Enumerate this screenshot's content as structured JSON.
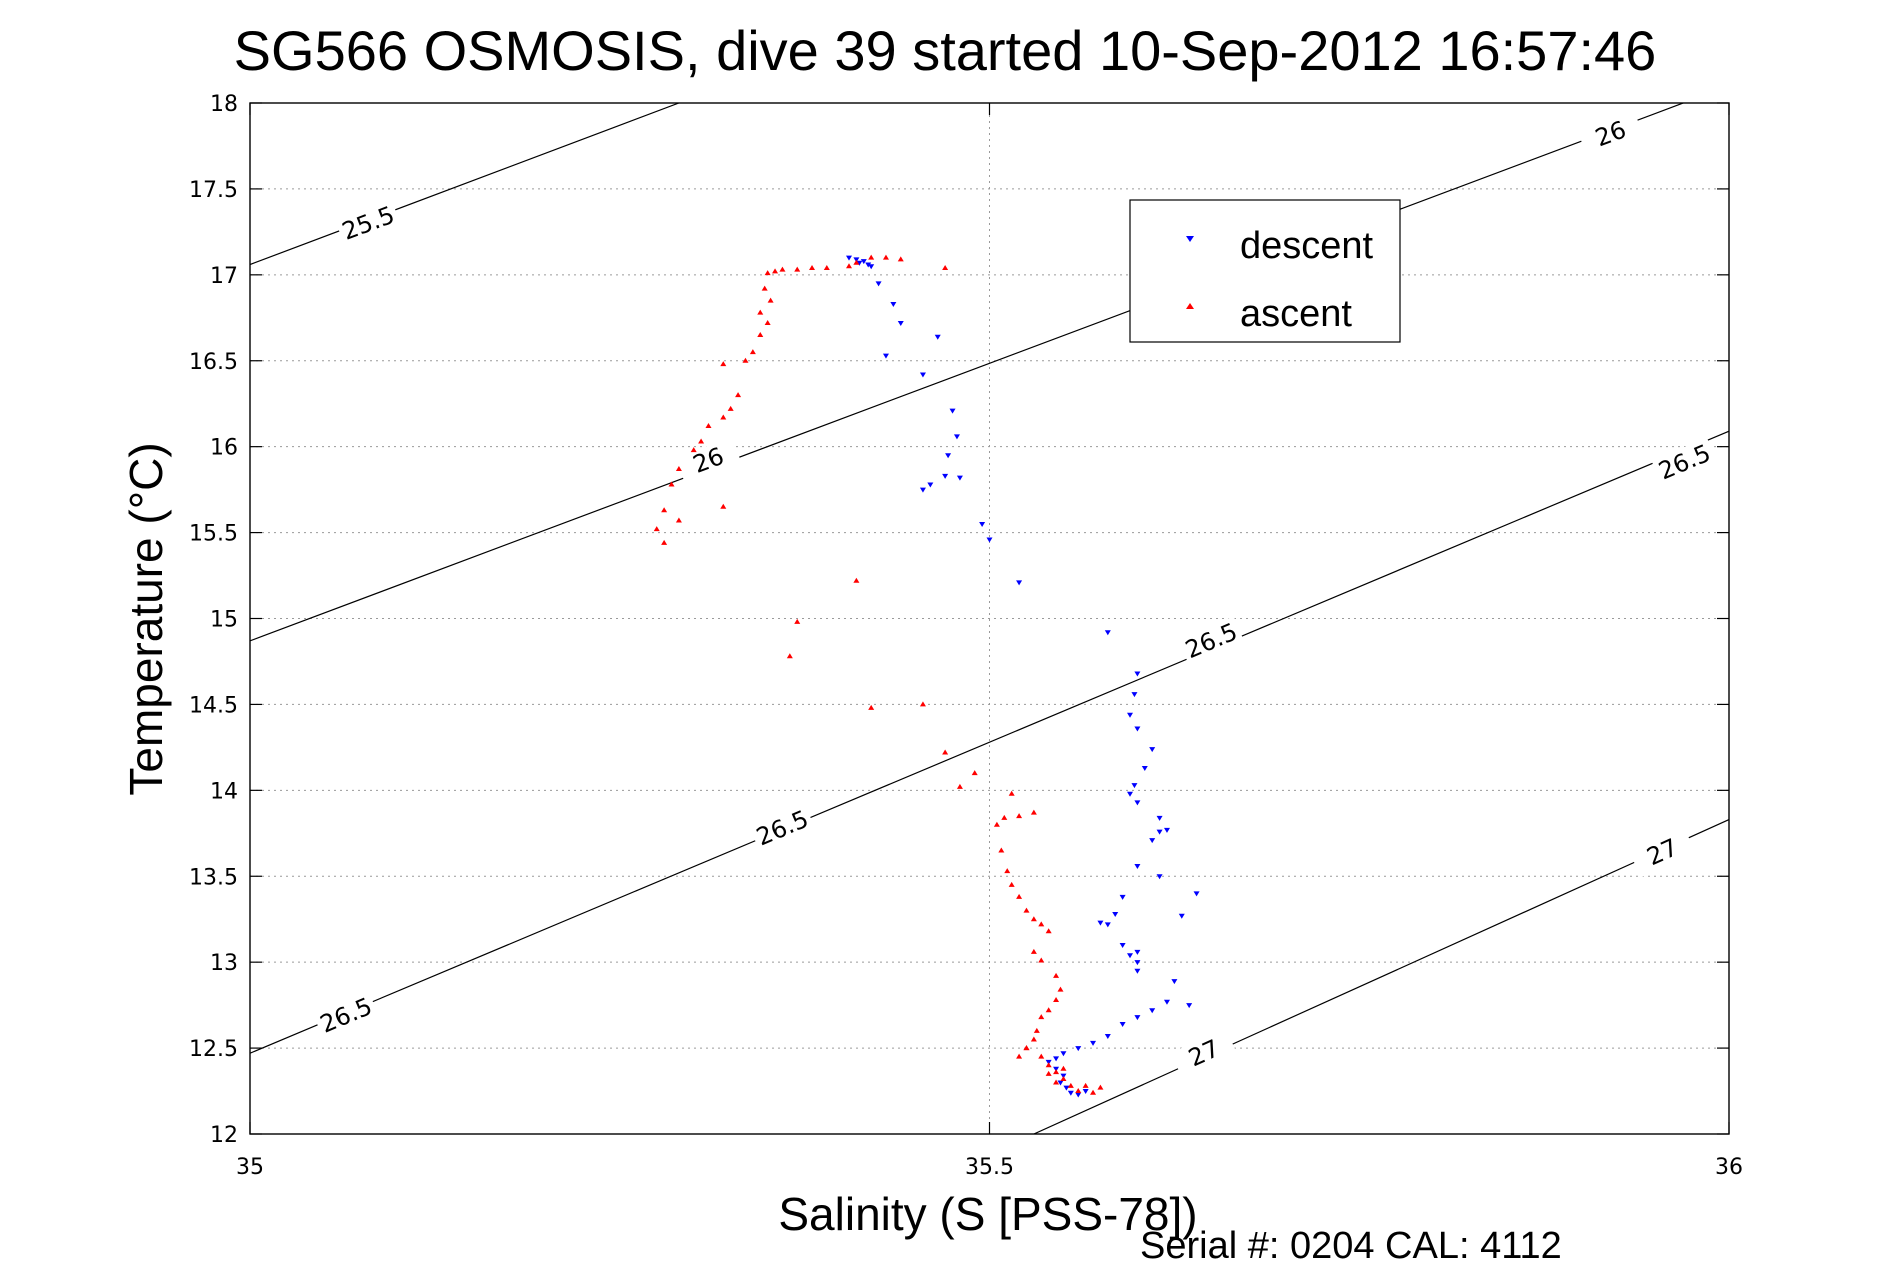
{
  "footer": {
    "serial_text": "Serial #: 0204  CAL: 4112"
  },
  "chart_data": {
    "type": "scatter",
    "title": "SG566 OSMOSIS, dive 39 started 10-Sep-2012 16:57:46",
    "xlabel": "Salinity (S [PSS-78])",
    "ylabel": "Temperature (°C)",
    "xlim": [
      35,
      36
    ],
    "ylim": [
      12,
      18
    ],
    "xticks": [
      35,
      35.5,
      36
    ],
    "xtick_labels": [
      "35",
      "35.5",
      "36"
    ],
    "yticks": [
      12,
      12.5,
      13,
      13.5,
      14,
      14.5,
      15,
      15.5,
      16,
      16.5,
      17,
      17.5,
      18
    ],
    "ytick_labels": [
      "12",
      "12.5",
      "13",
      "13.5",
      "14",
      "14.5",
      "15",
      "15.5",
      "16",
      "16.5",
      "17",
      "17.5",
      "18"
    ],
    "grid": true,
    "legend_position": "top-right",
    "contours": [
      {
        "level": "25.5",
        "line": [
          [
            35.0,
            17.06
          ],
          [
            35.29,
            18.0
          ]
        ],
        "labels": [
          [
            35.08,
            17.3
          ]
        ]
      },
      {
        "level": "26",
        "line": [
          [
            35.0,
            14.87
          ],
          [
            36.0,
            18.1
          ]
        ],
        "labels": [
          [
            35.31,
            15.92
          ],
          [
            35.92,
            17.82
          ]
        ]
      },
      {
        "level": "26.5",
        "line": [
          [
            35.0,
            12.47
          ],
          [
            36.0,
            16.09
          ]
        ],
        "labels": [
          [
            35.065,
            12.69
          ],
          [
            35.36,
            13.78
          ],
          [
            35.65,
            14.87
          ],
          [
            35.97,
            15.91
          ]
        ]
      },
      {
        "level": "27",
        "line": [
          [
            35.53,
            12.0
          ],
          [
            36.0,
            13.83
          ]
        ],
        "labels": [
          [
            35.645,
            12.47
          ],
          [
            35.955,
            13.64
          ]
        ]
      }
    ],
    "series": [
      {
        "name": "descent",
        "color": "#0000ff",
        "marker": "triangle-down",
        "points": [
          [
            35.405,
            17.1
          ],
          [
            35.41,
            17.09
          ],
          [
            35.415,
            17.08
          ],
          [
            35.412,
            17.07
          ],
          [
            35.418,
            17.06
          ],
          [
            35.42,
            17.05
          ],
          [
            35.425,
            16.95
          ],
          [
            35.435,
            16.83
          ],
          [
            35.44,
            16.72
          ],
          [
            35.43,
            16.53
          ],
          [
            35.455,
            16.42
          ],
          [
            35.465,
            16.64
          ],
          [
            35.475,
            16.21
          ],
          [
            35.478,
            16.06
          ],
          [
            35.472,
            15.95
          ],
          [
            35.47,
            15.83
          ],
          [
            35.46,
            15.78
          ],
          [
            35.455,
            15.75
          ],
          [
            35.48,
            15.82
          ],
          [
            35.495,
            15.55
          ],
          [
            35.5,
            15.46
          ],
          [
            35.52,
            15.21
          ],
          [
            35.58,
            14.92
          ],
          [
            35.6,
            14.68
          ],
          [
            35.598,
            14.56
          ],
          [
            35.595,
            14.44
          ],
          [
            35.6,
            14.36
          ],
          [
            35.61,
            14.24
          ],
          [
            35.605,
            14.13
          ],
          [
            35.598,
            14.03
          ],
          [
            35.595,
            13.98
          ],
          [
            35.6,
            13.93
          ],
          [
            35.615,
            13.84
          ],
          [
            35.62,
            13.77
          ],
          [
            35.61,
            13.71
          ],
          [
            35.6,
            13.56
          ],
          [
            35.615,
            13.5
          ],
          [
            35.59,
            13.38
          ],
          [
            35.585,
            13.28
          ],
          [
            35.58,
            13.22
          ],
          [
            35.575,
            13.23
          ],
          [
            35.59,
            13.1
          ],
          [
            35.6,
            13.06
          ],
          [
            35.595,
            13.04
          ],
          [
            35.6,
            13.0
          ],
          [
            35.625,
            12.89
          ],
          [
            35.62,
            12.77
          ],
          [
            35.61,
            12.72
          ],
          [
            35.6,
            12.68
          ],
          [
            35.59,
            12.64
          ],
          [
            35.58,
            12.57
          ],
          [
            35.57,
            12.53
          ],
          [
            35.56,
            12.5
          ],
          [
            35.55,
            12.47
          ],
          [
            35.545,
            12.44
          ],
          [
            35.54,
            12.42
          ],
          [
            35.545,
            12.38
          ],
          [
            35.55,
            12.34
          ],
          [
            35.548,
            12.3
          ],
          [
            35.552,
            12.27
          ],
          [
            35.555,
            12.24
          ],
          [
            35.56,
            12.23
          ],
          [
            35.565,
            12.25
          ],
          [
            35.63,
            13.27
          ],
          [
            35.64,
            13.4
          ],
          [
            35.615,
            13.76
          ],
          [
            35.635,
            12.75
          ],
          [
            35.6,
            12.95
          ]
        ]
      },
      {
        "name": "ascent",
        "color": "#ff0000",
        "marker": "triangle-up",
        "points": [
          [
            35.42,
            17.1
          ],
          [
            35.43,
            17.1
          ],
          [
            35.44,
            17.09
          ],
          [
            35.47,
            17.04
          ],
          [
            35.41,
            17.07
          ],
          [
            35.405,
            17.05
          ],
          [
            35.39,
            17.04
          ],
          [
            35.38,
            17.04
          ],
          [
            35.37,
            17.03
          ],
          [
            35.36,
            17.03
          ],
          [
            35.355,
            17.02
          ],
          [
            35.35,
            17.01
          ],
          [
            35.348,
            16.92
          ],
          [
            35.352,
            16.85
          ],
          [
            35.345,
            16.78
          ],
          [
            35.35,
            16.72
          ],
          [
            35.345,
            16.65
          ],
          [
            35.34,
            16.55
          ],
          [
            35.335,
            16.5
          ],
          [
            35.32,
            16.48
          ],
          [
            35.33,
            16.3
          ],
          [
            35.325,
            16.22
          ],
          [
            35.32,
            16.17
          ],
          [
            35.31,
            16.12
          ],
          [
            35.305,
            16.03
          ],
          [
            35.3,
            15.98
          ],
          [
            35.29,
            15.87
          ],
          [
            35.285,
            15.78
          ],
          [
            35.28,
            15.63
          ],
          [
            35.29,
            15.57
          ],
          [
            35.275,
            15.52
          ],
          [
            35.28,
            15.44
          ],
          [
            35.32,
            15.65
          ],
          [
            35.37,
            14.98
          ],
          [
            35.365,
            14.78
          ],
          [
            35.41,
            15.22
          ],
          [
            35.42,
            14.48
          ],
          [
            35.455,
            14.5
          ],
          [
            35.47,
            14.22
          ],
          [
            35.48,
            14.02
          ],
          [
            35.49,
            14.1
          ],
          [
            35.505,
            13.8
          ],
          [
            35.51,
            13.84
          ],
          [
            35.52,
            13.85
          ],
          [
            35.53,
            13.87
          ],
          [
            35.515,
            13.98
          ],
          [
            35.508,
            13.65
          ],
          [
            35.512,
            13.53
          ],
          [
            35.515,
            13.45
          ],
          [
            35.52,
            13.38
          ],
          [
            35.525,
            13.3
          ],
          [
            35.53,
            13.25
          ],
          [
            35.535,
            13.22
          ],
          [
            35.54,
            13.18
          ],
          [
            35.53,
            13.06
          ],
          [
            35.535,
            13.01
          ],
          [
            35.545,
            12.92
          ],
          [
            35.548,
            12.84
          ],
          [
            35.545,
            12.78
          ],
          [
            35.54,
            12.72
          ],
          [
            35.535,
            12.68
          ],
          [
            35.532,
            12.6
          ],
          [
            35.53,
            12.55
          ],
          [
            35.525,
            12.5
          ],
          [
            35.535,
            12.45
          ],
          [
            35.54,
            12.4
          ],
          [
            35.545,
            12.36
          ],
          [
            35.55,
            12.32
          ],
          [
            35.555,
            12.28
          ],
          [
            35.56,
            12.25
          ],
          [
            35.565,
            12.28
          ],
          [
            35.57,
            12.24
          ],
          [
            35.575,
            12.27
          ],
          [
            35.54,
            12.35
          ],
          [
            35.545,
            12.3
          ],
          [
            35.55,
            12.38
          ],
          [
            35.52,
            12.45
          ],
          [
            35.525,
            12.5
          ]
        ]
      }
    ]
  }
}
